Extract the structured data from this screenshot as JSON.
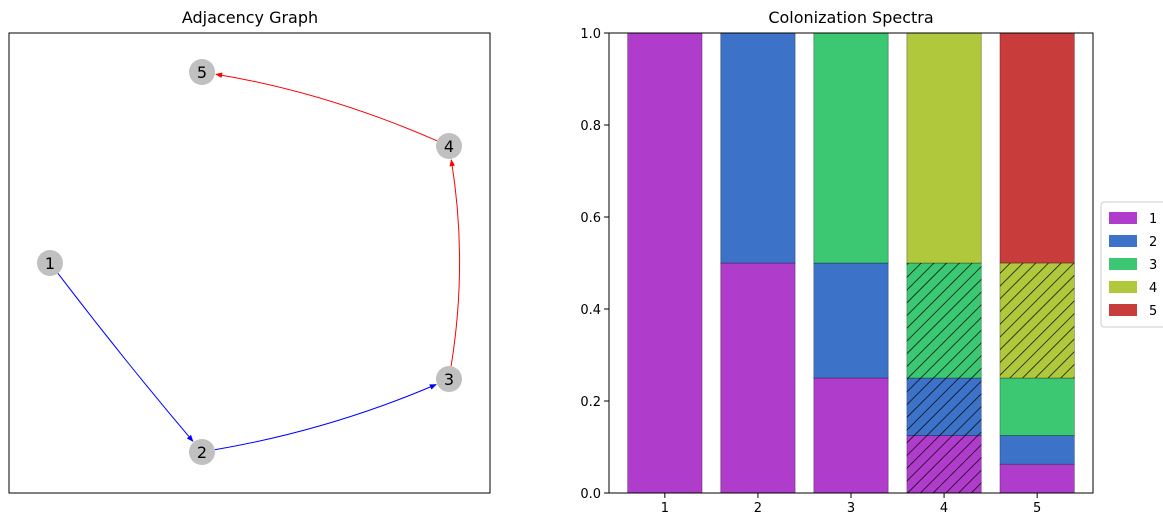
{
  "chart_data": [
    {
      "type": "graph",
      "title": "Adjacency Graph",
      "nodes": [
        {
          "id": "1",
          "label": "1"
        },
        {
          "id": "2",
          "label": "2"
        },
        {
          "id": "3",
          "label": "3"
        },
        {
          "id": "4",
          "label": "4"
        },
        {
          "id": "5",
          "label": "5"
        }
      ],
      "edges": [
        {
          "from": "1",
          "to": "2",
          "color": "#0000ff"
        },
        {
          "from": "2",
          "to": "3",
          "color": "#0000ff"
        },
        {
          "from": "3",
          "to": "4",
          "color": "#ff0000"
        },
        {
          "from": "4",
          "to": "5",
          "color": "#ff0000"
        }
      ],
      "node_color": "#c0c0c0"
    },
    {
      "type": "bar",
      "stacked": true,
      "title": "Colonization Spectra",
      "categories": [
        "1",
        "2",
        "3",
        "4",
        "5"
      ],
      "ylim": [
        0,
        1
      ],
      "yticks": [
        "0.0",
        "0.2",
        "0.4",
        "0.6",
        "0.8",
        "1.0"
      ],
      "legend_position": "right",
      "series": [
        {
          "name": "1",
          "color": "#b03ccc",
          "values": [
            1.0,
            0.5,
            0.25,
            0.125,
            0.0625
          ]
        },
        {
          "name": "2",
          "color": "#3c73c8",
          "values": [
            0,
            0.5,
            0.25,
            0.125,
            0.0625
          ]
        },
        {
          "name": "3",
          "color": "#3cc873",
          "values": [
            0,
            0,
            0.5,
            0.25,
            0.125
          ]
        },
        {
          "name": "4",
          "color": "#b0c83c",
          "values": [
            0,
            0,
            0,
            0.5,
            0.25
          ]
        },
        {
          "name": "5",
          "color": "#c83c3c",
          "values": [
            0,
            0,
            0,
            0,
            0.5
          ]
        }
      ],
      "hatched": [
        {
          "category": "4",
          "series": [
            "1",
            "2",
            "3"
          ]
        },
        {
          "category": "5",
          "series": [
            "4"
          ]
        }
      ]
    }
  ]
}
